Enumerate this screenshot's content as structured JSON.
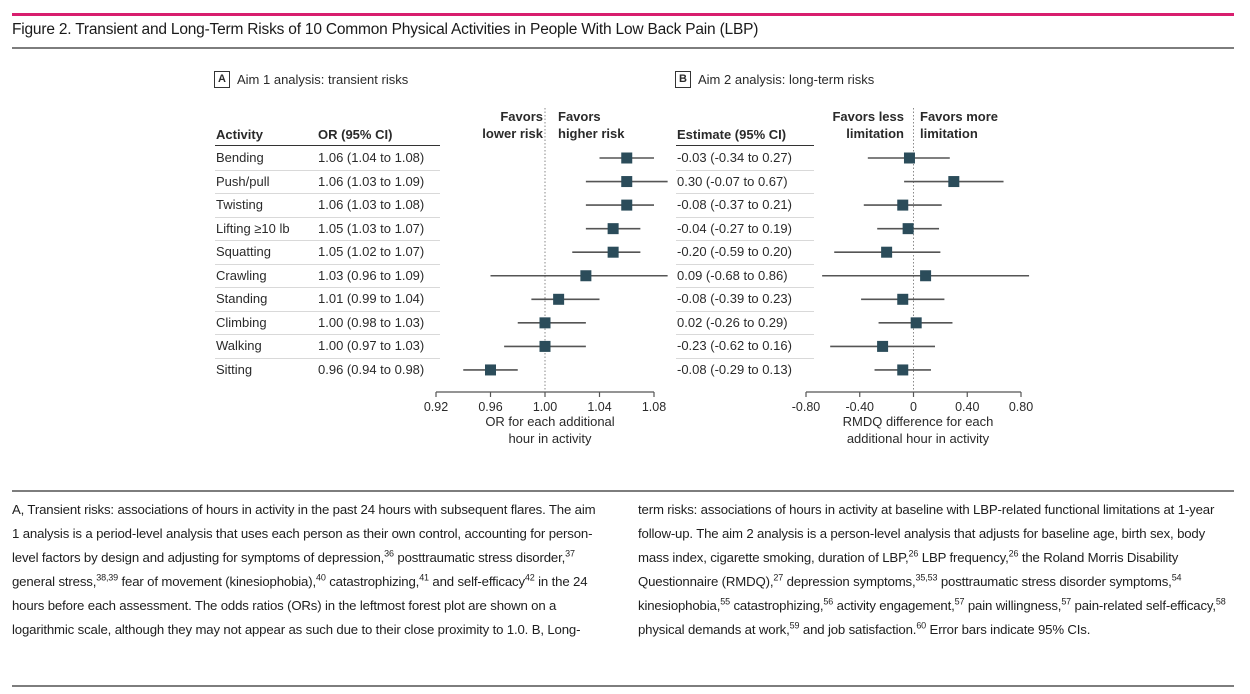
{
  "figure": {
    "title": "Figure 2. Transient and Long-Term Risks of 10 Common Physical Activities in People With Low Back Pain (LBP)",
    "accent_color": "#d81e6e",
    "marker_color": "#2b4c5a",
    "line_color": "#555555"
  },
  "panel_a": {
    "label": "A",
    "title": "Aim 1 analysis: transient risks",
    "col_activity": "Activity",
    "col_estimate": "OR (95% CI)",
    "favors_left": [
      "Favors",
      "lower risk"
    ],
    "favors_right": [
      "Favors",
      "higher risk"
    ],
    "axis_title": [
      "OR for each additional",
      "hour in activity"
    ]
  },
  "panel_b": {
    "label": "B",
    "title": "Aim 2 analysis: long-term risks",
    "col_estimate": "Estimate (95% CI)",
    "favors_left": [
      "Favors less",
      "limitation"
    ],
    "favors_right": [
      "Favors more",
      "limitation"
    ],
    "axis_title": [
      "RMDQ difference for each",
      "additional hour in activity"
    ]
  },
  "rows": [
    {
      "activity": "Bending",
      "a_text": "1.06 (1.04 to 1.08)",
      "b_text": "-0.03 (-0.34 to 0.27)"
    },
    {
      "activity": "Push/pull",
      "a_text": "1.06 (1.03 to 1.09)",
      "b_text": "0.30 (-0.07 to 0.67)"
    },
    {
      "activity": "Twisting",
      "a_text": "1.06 (1.03 to 1.08)",
      "b_text": "-0.08 (-0.37 to 0.21)"
    },
    {
      "activity": "Lifting ≥10 lb",
      "a_text": "1.05 (1.03 to 1.07)",
      "b_text": "-0.04 (-0.27 to 0.19)"
    },
    {
      "activity": "Squatting",
      "a_text": "1.05 (1.02 to 1.07)",
      "b_text": "-0.20 (-0.59 to 0.20)"
    },
    {
      "activity": "Crawling",
      "a_text": "1.03 (0.96 to 1.09)",
      "b_text": "0.09 (-0.68 to 0.86)"
    },
    {
      "activity": "Standing",
      "a_text": "1.01 (0.99 to 1.04)",
      "b_text": "-0.08 (-0.39 to 0.23)"
    },
    {
      "activity": "Climbing",
      "a_text": "1.00 (0.98 to 1.03)",
      "b_text": "0.02 (-0.26 to 0.29)"
    },
    {
      "activity": "Walking",
      "a_text": "1.00 (0.97 to 1.03)",
      "b_text": "-0.23 (-0.62 to 0.16)"
    },
    {
      "activity": "Sitting",
      "a_text": "0.96 (0.94 to 0.98)",
      "b_text": "-0.08 (-0.29 to 0.13)"
    }
  ],
  "chart_data": [
    {
      "type": "scatter",
      "subtype": "forest",
      "title": "A Aim 1 analysis: transient risks",
      "xlabel": "OR for each additional hour in activity",
      "ylabel": "Activity",
      "xlim": [
        0.92,
        1.08
      ],
      "xticks": [
        0.92,
        0.96,
        1.0,
        1.04,
        1.08
      ],
      "xtick_labels": [
        "0.92",
        "0.96",
        "1.00",
        "1.04",
        "1.08"
      ],
      "reference_line": 1.0,
      "grid": false,
      "categories": [
        "Bending",
        "Push/pull",
        "Twisting",
        "Lifting ≥10 lb",
        "Squatting",
        "Crawling",
        "Standing",
        "Climbing",
        "Walking",
        "Sitting"
      ],
      "series": [
        {
          "name": "OR",
          "values": [
            1.06,
            1.06,
            1.06,
            1.05,
            1.05,
            1.03,
            1.01,
            1.0,
            1.0,
            0.96
          ]
        },
        {
          "name": "CI lower",
          "values": [
            1.04,
            1.03,
            1.03,
            1.03,
            1.02,
            0.96,
            0.99,
            0.98,
            0.97,
            0.94
          ]
        },
        {
          "name": "CI upper",
          "values": [
            1.08,
            1.09,
            1.08,
            1.07,
            1.07,
            1.09,
            1.04,
            1.03,
            1.03,
            0.98
          ]
        }
      ]
    },
    {
      "type": "scatter",
      "subtype": "forest",
      "title": "B Aim 2 analysis: long-term risks",
      "xlabel": "RMDQ difference for each additional hour in activity",
      "ylabel": "Activity",
      "xlim": [
        -0.8,
        0.8
      ],
      "xticks": [
        -0.8,
        -0.4,
        0,
        0.4,
        0.8
      ],
      "xtick_labels": [
        "-0.80",
        "-0.40",
        "0",
        "0.40",
        "0.80"
      ],
      "reference_line": 0,
      "grid": false,
      "categories": [
        "Bending",
        "Push/pull",
        "Twisting",
        "Lifting ≥10 lb",
        "Squatting",
        "Crawling",
        "Standing",
        "Climbing",
        "Walking",
        "Sitting"
      ],
      "series": [
        {
          "name": "Estimate",
          "values": [
            -0.03,
            0.3,
            -0.08,
            -0.04,
            -0.2,
            0.09,
            -0.08,
            0.02,
            -0.23,
            -0.08
          ]
        },
        {
          "name": "CI lower",
          "values": [
            -0.34,
            -0.07,
            -0.37,
            -0.27,
            -0.59,
            -0.68,
            -0.39,
            -0.26,
            -0.62,
            -0.29
          ]
        },
        {
          "name": "CI upper",
          "values": [
            0.27,
            0.67,
            0.21,
            0.19,
            0.2,
            0.86,
            0.23,
            0.29,
            0.16,
            0.13
          ]
        }
      ]
    }
  ],
  "caption": {
    "left": [
      {
        "t": "A, Transient risks: associations of hours in activity in the past 24 hours with subsequent flares. The aim 1 analysis is a period-level analysis that uses each person as their own control, accounting for person-level factors by design and adjusting for symptoms of depression,"
      },
      {
        "sup": "36"
      },
      {
        "t": " posttraumatic stress disorder,"
      },
      {
        "sup": "37"
      },
      {
        "t": " general stress,"
      },
      {
        "sup": "38,39"
      },
      {
        "t": " fear of movement (kinesiophobia),"
      },
      {
        "sup": "40"
      },
      {
        "t": " catastrophizing,"
      },
      {
        "sup": "41"
      },
      {
        "t": " and self-efficacy"
      },
      {
        "sup": "42"
      },
      {
        "t": " in the 24 hours before each assessment. The odds ratios (ORs) in the leftmost forest plot are shown on a logarithmic scale, although they may not appear as such due to their close proximity to 1.0. B, Long-"
      }
    ],
    "right": [
      {
        "t": "term risks: associations of hours in activity at baseline with LBP-related functional limitations at 1-year follow-up. The aim 2 analysis is a person-level analysis that adjusts for baseline age, birth sex, body mass index, cigarette smoking, duration of LBP,"
      },
      {
        "sup": "26"
      },
      {
        "t": " LBP frequency,"
      },
      {
        "sup": "26"
      },
      {
        "t": " the Roland Morris Disability Questionnaire (RMDQ),"
      },
      {
        "sup": "27"
      },
      {
        "t": " depression symptoms,"
      },
      {
        "sup": "35,53"
      },
      {
        "t": " posttraumatic stress disorder symptoms,"
      },
      {
        "sup": "54"
      },
      {
        "t": " kinesiophobia,"
      },
      {
        "sup": "55"
      },
      {
        "t": " catastrophizing,"
      },
      {
        "sup": "56"
      },
      {
        "t": " activity engagement,"
      },
      {
        "sup": "57"
      },
      {
        "t": " pain willingness,"
      },
      {
        "sup": "57"
      },
      {
        "t": " pain-related self-efficacy,"
      },
      {
        "sup": "58"
      },
      {
        "t": " physical demands at work,"
      },
      {
        "sup": "59"
      },
      {
        "t": " and job satisfaction."
      },
      {
        "sup": "60"
      },
      {
        "t": " Error bars indicate 95% CIs."
      }
    ]
  }
}
